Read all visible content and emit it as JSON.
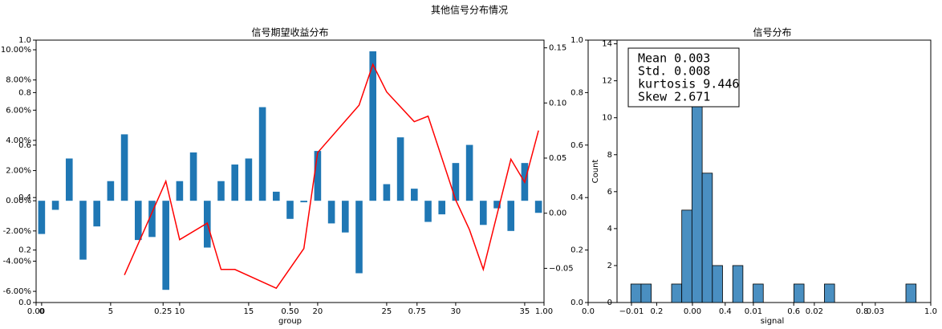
{
  "title": "其他信号分布情况",
  "chart_data": [
    {
      "type": "bar",
      "title": "信号期望收益分布",
      "xlabel": "group",
      "x": [
        0,
        1,
        2,
        3,
        4,
        5,
        6,
        7,
        8,
        9,
        10,
        11,
        12,
        13,
        14,
        15,
        16,
        17,
        18,
        19,
        20,
        21,
        22,
        23,
        24,
        25,
        26,
        27,
        28,
        29,
        30,
        31,
        32,
        33,
        34,
        35,
        36
      ],
      "values": [
        -0.022,
        -0.006,
        0.028,
        -0.039,
        -0.017,
        0.013,
        0.044,
        -0.026,
        -0.024,
        -0.059,
        0.013,
        0.032,
        -0.031,
        0.013,
        0.024,
        0.028,
        0.062,
        0.006,
        -0.012,
        -0.001,
        0.033,
        -0.015,
        -0.021,
        -0.048,
        0.099,
        0.011,
        0.042,
        0.008,
        -0.014,
        -0.009,
        0.025,
        0.037,
        -0.016,
        -0.005,
        -0.02,
        0.025,
        -0.008
      ],
      "color": "#1f77b4",
      "xlim": [
        -0.4,
        36.4
      ],
      "xticks": [
        0,
        5,
        10,
        15,
        20,
        25,
        30,
        35
      ],
      "ylim": [
        -0.0674,
        0.1064
      ],
      "yticks": [
        {
          "value": -0.06,
          "label": "-6.00%"
        },
        {
          "value": -0.04,
          "label": "-4.00%"
        },
        {
          "value": -0.02,
          "label": "-2.00%"
        },
        {
          "value": 0,
          "label": "0.00%"
        },
        {
          "value": 0.02,
          "label": "2.00%"
        },
        {
          "value": 0.04,
          "label": "4.00%"
        },
        {
          "value": 0.06,
          "label": "6.00%"
        },
        {
          "value": 0.08,
          "label": "8.00%"
        },
        {
          "value": 0.1,
          "label": "10.00%"
        }
      ],
      "line": {
        "axis": "y2",
        "color": "#ff0000",
        "x": [
          6,
          9,
          10,
          12,
          13,
          14,
          17,
          19,
          20,
          23,
          24,
          25,
          27,
          28,
          30,
          31,
          32,
          34,
          35,
          36
        ],
        "values": [
          -0.056,
          0.029,
          -0.024,
          -0.009,
          -0.051,
          -0.051,
          -0.068,
          -0.032,
          0.055,
          0.098,
          0.135,
          0.11,
          0.083,
          0.088,
          0.012,
          -0.015,
          -0.051,
          0.049,
          0.028,
          0.075
        ]
      },
      "y2lim": [
        -0.081,
        0.157
      ],
      "y2ticks": [
        {
          "value": -0.05,
          "label": "−0.05"
        },
        {
          "value": 0,
          "label": "0.00"
        },
        {
          "value": 0.05,
          "label": "0.05"
        },
        {
          "value": 0.1,
          "label": "0.10"
        },
        {
          "value": 0.15,
          "label": "0.15"
        }
      ],
      "base_axes": {
        "xlim": [
          0,
          1
        ],
        "ylim": [
          0,
          1
        ],
        "xticks": [
          {
            "value": 0,
            "label": "0.00"
          },
          {
            "value": 0.25,
            "label": "0.25"
          },
          {
            "value": 0.5,
            "label": "0.50"
          },
          {
            "value": 0.75,
            "label": "0.75"
          },
          {
            "value": 1,
            "label": "1.00"
          }
        ],
        "yticks": [
          {
            "value": 0,
            "label": "0.0"
          },
          {
            "value": 0.2,
            "label": "0.2"
          },
          {
            "value": 0.4,
            "label": "0.4"
          },
          {
            "value": 0.6,
            "label": "0.6"
          },
          {
            "value": 0.8,
            "label": "0.8"
          },
          {
            "value": 1,
            "label": "1.0"
          }
        ]
      }
    },
    {
      "type": "histogram",
      "title": "信号分布",
      "xlabel": "signal",
      "ylabel": "Count",
      "bins": [
        -0.0101,
        -0.00843,
        -0.00676,
        -0.00509,
        -0.00342,
        -0.00175,
        -8e-05,
        0.0016,
        0.00327,
        0.00494,
        0.00661,
        0.00828,
        0.00995,
        0.01162,
        0.01329,
        0.01497,
        0.01664,
        0.01831,
        0.01998,
        0.02165,
        0.02332,
        0.02499,
        0.02667,
        0.02834,
        0.03001,
        0.03168,
        0.03335,
        0.03502,
        0.03669
      ],
      "counts": [
        1,
        1,
        0,
        0,
        1,
        5,
        11,
        7,
        2,
        0,
        2,
        0,
        1,
        0,
        0,
        0,
        1,
        0,
        0,
        1,
        0,
        0,
        0,
        0,
        0,
        0,
        0,
        1
      ],
      "color": "#4a8fc1",
      "xlim": [
        -0.01237,
        0.0391
      ],
      "xticks": [
        {
          "value": -0.01,
          "label": "−0.01"
        },
        {
          "value": 0,
          "label": "0.00"
        },
        {
          "value": 0.01,
          "label": "0.01"
        },
        {
          "value": 0.02,
          "label": "0.02"
        },
        {
          "value": 0.03,
          "label": "0.03"
        }
      ],
      "ylim": [
        0,
        14.2
      ],
      "yticks": [
        0,
        2,
        4,
        6,
        8,
        10,
        12,
        14
      ],
      "stats": [
        "Mean 0.003",
        "Std. 0.008",
        "kurtosis 9.446",
        "Skew 2.671"
      ],
      "base_axes": {
        "xlim": [
          0,
          1
        ],
        "ylim": [
          0,
          1
        ],
        "xticks": [
          {
            "value": 0,
            "label": "0.0"
          },
          {
            "value": 0.2,
            "label": "0.2"
          },
          {
            "value": 0.4,
            "label": "0.4"
          },
          {
            "value": 0.6,
            "label": "0.6"
          },
          {
            "value": 0.8,
            "label": "0.8"
          },
          {
            "value": 1,
            "label": "1.0"
          }
        ],
        "yticks": [
          {
            "value": 0,
            "label": "0.0"
          },
          {
            "value": 0.2,
            "label": "0.2"
          },
          {
            "value": 0.4,
            "label": "0.4"
          },
          {
            "value": 0.6,
            "label": "0.6"
          },
          {
            "value": 0.8,
            "label": "0.8"
          },
          {
            "value": 1,
            "label": "1.0"
          }
        ]
      }
    }
  ]
}
